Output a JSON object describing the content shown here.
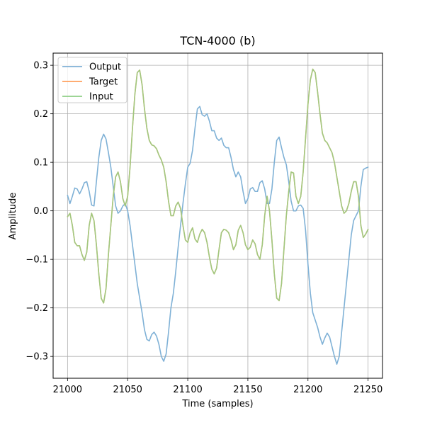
{
  "chart_data": {
    "type": "line",
    "title": "TCN-4000 (b)",
    "xlabel": "Time (samples)",
    "ylabel": "Amplitude",
    "xlim": [
      20988,
      21262
    ],
    "ylim": [
      -0.345,
      0.325
    ],
    "xticks": [
      21000,
      21050,
      21100,
      21150,
      21200,
      21250
    ],
    "yticks": [
      -0.3,
      -0.2,
      -0.1,
      0.0,
      0.1,
      0.2,
      0.3
    ],
    "ytick_labels": [
      "−0.3",
      "−0.2",
      "−0.1",
      "0.0",
      "0.1",
      "0.2",
      "0.3"
    ],
    "grid": true,
    "legend_position": "top-left",
    "series": [
      {
        "name": "Output",
        "color": "#7fb1d6",
        "points": [
          [
            21000,
            0.032
          ],
          [
            21002,
            0.015
          ],
          [
            21004,
            0.03
          ],
          [
            21006,
            0.047
          ],
          [
            21008,
            0.045
          ],
          [
            21010,
            0.035
          ],
          [
            21012,
            0.045
          ],
          [
            21014,
            0.058
          ],
          [
            21016,
            0.06
          ],
          [
            21018,
            0.04
          ],
          [
            21020,
            0.012
          ],
          [
            21022,
            0.01
          ],
          [
            21024,
            0.06
          ],
          [
            21026,
            0.11
          ],
          [
            21028,
            0.145
          ],
          [
            21030,
            0.158
          ],
          [
            21032,
            0.148
          ],
          [
            21034,
            0.12
          ],
          [
            21036,
            0.09
          ],
          [
            21038,
            0.05
          ],
          [
            21040,
            0.01
          ],
          [
            21042,
            -0.005
          ],
          [
            21044,
            0.0
          ],
          [
            21046,
            0.01
          ],
          [
            21048,
            0.015
          ],
          [
            21050,
            0.0
          ],
          [
            21052,
            -0.03
          ],
          [
            21054,
            -0.07
          ],
          [
            21056,
            -0.11
          ],
          [
            21058,
            -0.15
          ],
          [
            21060,
            -0.18
          ],
          [
            21062,
            -0.21
          ],
          [
            21064,
            -0.245
          ],
          [
            21066,
            -0.265
          ],
          [
            21068,
            -0.268
          ],
          [
            21070,
            -0.255
          ],
          [
            21072,
            -0.25
          ],
          [
            21074,
            -0.258
          ],
          [
            21076,
            -0.275
          ],
          [
            21078,
            -0.3
          ],
          [
            21080,
            -0.31
          ],
          [
            21082,
            -0.295
          ],
          [
            21084,
            -0.25
          ],
          [
            21086,
            -0.2
          ],
          [
            21088,
            -0.17
          ],
          [
            21090,
            -0.125
          ],
          [
            21092,
            -0.075
          ],
          [
            21094,
            -0.03
          ],
          [
            21096,
            0.015
          ],
          [
            21098,
            0.055
          ],
          [
            21100,
            0.09
          ],
          [
            21102,
            0.098
          ],
          [
            21104,
            0.125
          ],
          [
            21106,
            0.17
          ],
          [
            21108,
            0.21
          ],
          [
            21110,
            0.215
          ],
          [
            21112,
            0.198
          ],
          [
            21114,
            0.195
          ],
          [
            21116,
            0.2
          ],
          [
            21118,
            0.185
          ],
          [
            21120,
            0.165
          ],
          [
            21122,
            0.165
          ],
          [
            21124,
            0.15
          ],
          [
            21126,
            0.145
          ],
          [
            21128,
            0.15
          ],
          [
            21130,
            0.135
          ],
          [
            21132,
            0.13
          ],
          [
            21134,
            0.13
          ],
          [
            21136,
            0.11
          ],
          [
            21138,
            0.085
          ],
          [
            21140,
            0.07
          ],
          [
            21142,
            0.08
          ],
          [
            21144,
            0.07
          ],
          [
            21146,
            0.04
          ],
          [
            21148,
            0.015
          ],
          [
            21150,
            0.025
          ],
          [
            21152,
            0.045
          ],
          [
            21154,
            0.048
          ],
          [
            21156,
            0.04
          ],
          [
            21158,
            0.04
          ],
          [
            21160,
            0.058
          ],
          [
            21162,
            0.062
          ],
          [
            21164,
            0.045
          ],
          [
            21166,
            0.015
          ],
          [
            21168,
            0.015
          ],
          [
            21170,
            0.045
          ],
          [
            21172,
            0.1
          ],
          [
            21174,
            0.145
          ],
          [
            21176,
            0.152
          ],
          [
            21178,
            0.13
          ],
          [
            21180,
            0.11
          ],
          [
            21182,
            0.095
          ],
          [
            21184,
            0.06
          ],
          [
            21186,
            0.02
          ],
          [
            21188,
            0.0
          ],
          [
            21190,
            0.0
          ],
          [
            21192,
            0.01
          ],
          [
            21194,
            0.012
          ],
          [
            21196,
            0.005
          ],
          [
            21198,
            -0.04
          ],
          [
            21200,
            -0.11
          ],
          [
            21202,
            -0.17
          ],
          [
            21204,
            -0.21
          ],
          [
            21206,
            -0.225
          ],
          [
            21208,
            -0.24
          ],
          [
            21210,
            -0.26
          ],
          [
            21212,
            -0.275
          ],
          [
            21214,
            -0.262
          ],
          [
            21216,
            -0.252
          ],
          [
            21218,
            -0.26
          ],
          [
            21220,
            -0.28
          ],
          [
            21222,
            -0.3
          ],
          [
            21224,
            -0.316
          ],
          [
            21226,
            -0.3
          ],
          [
            21228,
            -0.25
          ],
          [
            21230,
            -0.2
          ],
          [
            21232,
            -0.15
          ],
          [
            21234,
            -0.1
          ],
          [
            21236,
            -0.05
          ],
          [
            21238,
            -0.02
          ],
          [
            21240,
            -0.01
          ],
          [
            21242,
            0.0
          ],
          [
            21244,
            0.05
          ],
          [
            21246,
            0.085
          ],
          [
            21248,
            0.088
          ],
          [
            21250,
            0.09
          ]
        ]
      },
      {
        "name": "Target",
        "color": "#ffa15e",
        "points": [
          [
            21000,
            -0.012
          ],
          [
            21002,
            -0.005
          ],
          [
            21004,
            -0.03
          ],
          [
            21006,
            -0.065
          ],
          [
            21008,
            -0.072
          ],
          [
            21010,
            -0.072
          ],
          [
            21012,
            -0.09
          ],
          [
            21014,
            -0.102
          ],
          [
            21016,
            -0.085
          ],
          [
            21018,
            -0.03
          ],
          [
            21020,
            -0.005
          ],
          [
            21022,
            -0.02
          ],
          [
            21024,
            -0.07
          ],
          [
            21026,
            -0.13
          ],
          [
            21028,
            -0.18
          ],
          [
            21030,
            -0.19
          ],
          [
            21032,
            -0.16
          ],
          [
            21034,
            -0.09
          ],
          [
            21036,
            -0.03
          ],
          [
            21038,
            0.03
          ],
          [
            21040,
            0.07
          ],
          [
            21042,
            0.08
          ],
          [
            21044,
            0.06
          ],
          [
            21046,
            0.025
          ],
          [
            21048,
            0.01
          ],
          [
            21050,
            0.03
          ],
          [
            21052,
            0.09
          ],
          [
            21054,
            0.17
          ],
          [
            21056,
            0.24
          ],
          [
            21058,
            0.285
          ],
          [
            21060,
            0.29
          ],
          [
            21062,
            0.26
          ],
          [
            21064,
            0.21
          ],
          [
            21066,
            0.17
          ],
          [
            21068,
            0.145
          ],
          [
            21070,
            0.136
          ],
          [
            21072,
            0.134
          ],
          [
            21074,
            0.128
          ],
          [
            21076,
            0.115
          ],
          [
            21078,
            0.105
          ],
          [
            21080,
            0.09
          ],
          [
            21082,
            0.06
          ],
          [
            21084,
            0.02
          ],
          [
            21086,
            -0.01
          ],
          [
            21088,
            -0.01
          ],
          [
            21090,
            0.01
          ],
          [
            21092,
            0.018
          ],
          [
            21094,
            0.005
          ],
          [
            21096,
            -0.03
          ],
          [
            21098,
            -0.06
          ],
          [
            21100,
            -0.065
          ],
          [
            21102,
            -0.045
          ],
          [
            21104,
            -0.035
          ],
          [
            21106,
            -0.058
          ],
          [
            21108,
            -0.065
          ],
          [
            21110,
            -0.048
          ],
          [
            21112,
            -0.038
          ],
          [
            21114,
            -0.045
          ],
          [
            21116,
            -0.065
          ],
          [
            21118,
            -0.095
          ],
          [
            21120,
            -0.12
          ],
          [
            21122,
            -0.13
          ],
          [
            21124,
            -0.118
          ],
          [
            21126,
            -0.08
          ],
          [
            21128,
            -0.045
          ],
          [
            21130,
            -0.038
          ],
          [
            21132,
            -0.04
          ],
          [
            21134,
            -0.045
          ],
          [
            21136,
            -0.06
          ],
          [
            21138,
            -0.08
          ],
          [
            21140,
            -0.07
          ],
          [
            21142,
            -0.04
          ],
          [
            21144,
            -0.03
          ],
          [
            21146,
            -0.045
          ],
          [
            21148,
            -0.07
          ],
          [
            21150,
            -0.08
          ],
          [
            21152,
            -0.075
          ],
          [
            21154,
            -0.06
          ],
          [
            21156,
            -0.068
          ],
          [
            21158,
            -0.09
          ],
          [
            21160,
            -0.1
          ],
          [
            21162,
            -0.07
          ],
          [
            21164,
            -0.01
          ],
          [
            21166,
            0.03
          ],
          [
            21168,
            0.0
          ],
          [
            21170,
            -0.06
          ],
          [
            21172,
            -0.13
          ],
          [
            21174,
            -0.18
          ],
          [
            21176,
            -0.185
          ],
          [
            21178,
            -0.15
          ],
          [
            21180,
            -0.08
          ],
          [
            21182,
            -0.01
          ],
          [
            21184,
            0.04
          ],
          [
            21186,
            0.08
          ],
          [
            21188,
            0.078
          ],
          [
            21190,
            0.03
          ],
          [
            21192,
            0.015
          ],
          [
            21194,
            0.03
          ],
          [
            21196,
            0.08
          ],
          [
            21198,
            0.15
          ],
          [
            21200,
            0.22
          ],
          [
            21202,
            0.27
          ],
          [
            21204,
            0.292
          ],
          [
            21206,
            0.285
          ],
          [
            21208,
            0.245
          ],
          [
            21210,
            0.2
          ],
          [
            21212,
            0.16
          ],
          [
            21214,
            0.145
          ],
          [
            21216,
            0.14
          ],
          [
            21218,
            0.13
          ],
          [
            21220,
            0.12
          ],
          [
            21222,
            0.1
          ],
          [
            21224,
            0.07
          ],
          [
            21226,
            0.04
          ],
          [
            21228,
            0.01
          ],
          [
            21230,
            -0.005
          ],
          [
            21232,
            0.0
          ],
          [
            21234,
            0.015
          ],
          [
            21236,
            0.04
          ],
          [
            21238,
            0.06
          ],
          [
            21240,
            0.06
          ],
          [
            21242,
            0.03
          ],
          [
            21244,
            -0.03
          ],
          [
            21246,
            -0.055
          ],
          [
            21248,
            -0.048
          ],
          [
            21250,
            -0.038
          ]
        ]
      },
      {
        "name": "Input",
        "color": "#8fcf86",
        "same_as": "Target"
      }
    ]
  }
}
